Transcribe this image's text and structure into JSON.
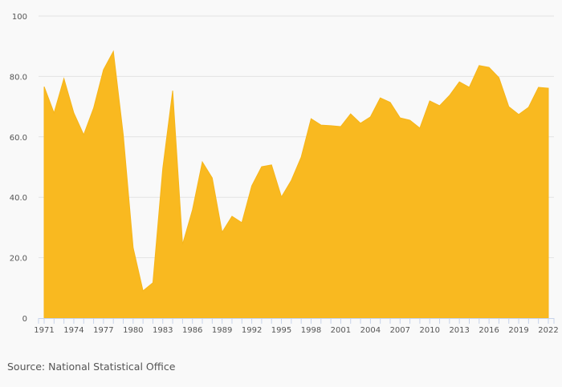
{
  "chart_data": {
    "type": "area",
    "title": "",
    "xlabel": "",
    "ylabel": "",
    "x": [
      1971,
      1972,
      1973,
      1974,
      1975,
      1976,
      1977,
      1978,
      1979,
      1980,
      1981,
      1982,
      1983,
      1984,
      1985,
      1986,
      1987,
      1988,
      1989,
      1990,
      1991,
      1992,
      1993,
      1994,
      1995,
      1996,
      1997,
      1998,
      1999,
      2000,
      2001,
      2002,
      2003,
      2004,
      2005,
      2006,
      2007,
      2008,
      2009,
      2010,
      2011,
      2012,
      2013,
      2014,
      2015,
      2016,
      2017,
      2018,
      2019,
      2020,
      2021,
      2022
    ],
    "values": [
      76.6,
      67.9,
      79.3,
      67.9,
      60.7,
      69.5,
      82.2,
      88.3,
      60.7,
      23.3,
      9.0,
      11.7,
      49.6,
      75.3,
      24.4,
      35.8,
      51.7,
      46.4,
      28.4,
      33.7,
      31.6,
      43.8,
      50.1,
      50.7,
      40.1,
      45.6,
      53.3,
      66.0,
      63.9,
      63.7,
      63.4,
      67.6,
      64.5,
      66.6,
      72.9,
      71.4,
      66.3,
      65.5,
      62.9,
      71.9,
      70.3,
      73.7,
      78.2,
      76.4,
      83.6,
      83.0,
      79.6,
      70.0,
      67.4,
      69.8,
      76.4,
      76.1
    ],
    "ylim": [
      0,
      100
    ],
    "y_ticks": [
      "0",
      "20.0",
      "40.0",
      "60.0",
      "80.0",
      "100"
    ],
    "x_ticks": [
      "1971",
      "1974",
      "1977",
      "1980",
      "1983",
      "1986",
      "1989",
      "1992",
      "1995",
      "1998",
      "2001",
      "2004",
      "2007",
      "2010",
      "2013",
      "2016",
      "2019",
      "2022"
    ],
    "grid": true,
    "fill_color": "#f9b920"
  },
  "source": "Source: National Statistical Office"
}
